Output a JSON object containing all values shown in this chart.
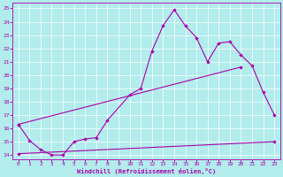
{
  "background_color": "#b2ecec",
  "line_color": "#aa00aa",
  "xlabel": "Windchill (Refroidissement éolien,°C)",
  "xlim": [
    -0.5,
    23.5
  ],
  "ylim": [
    13.7,
    25.4
  ],
  "xticks": [
    0,
    1,
    2,
    3,
    4,
    5,
    6,
    7,
    8,
    9,
    10,
    11,
    12,
    13,
    14,
    15,
    16,
    17,
    18,
    19,
    20,
    21,
    22,
    23
  ],
  "yticks": [
    14,
    15,
    16,
    17,
    18,
    19,
    20,
    21,
    22,
    23,
    24,
    25
  ],
  "line1_x": [
    0,
    1,
    2,
    3,
    4,
    5,
    6,
    7,
    8,
    10,
    11,
    12,
    13,
    14,
    15,
    16,
    17,
    18,
    19,
    20,
    21,
    22,
    23
  ],
  "line1_y": [
    16.3,
    15.1,
    14.4,
    14.0,
    14.0,
    15.0,
    15.2,
    15.3,
    16.6,
    18.5,
    19.0,
    21.8,
    23.7,
    24.9,
    23.7,
    22.8,
    21.0,
    22.4,
    22.5,
    21.5,
    20.7,
    18.7,
    17.0
  ],
  "line2_x": [
    0,
    23
  ],
  "line2_y": [
    14.1,
    15.0
  ],
  "line3_x": [
    0,
    20
  ],
  "line3_y": [
    16.3,
    20.6
  ],
  "marker_line3_x": [
    0,
    20
  ],
  "marker_line3_y": [
    16.3,
    20.6
  ]
}
